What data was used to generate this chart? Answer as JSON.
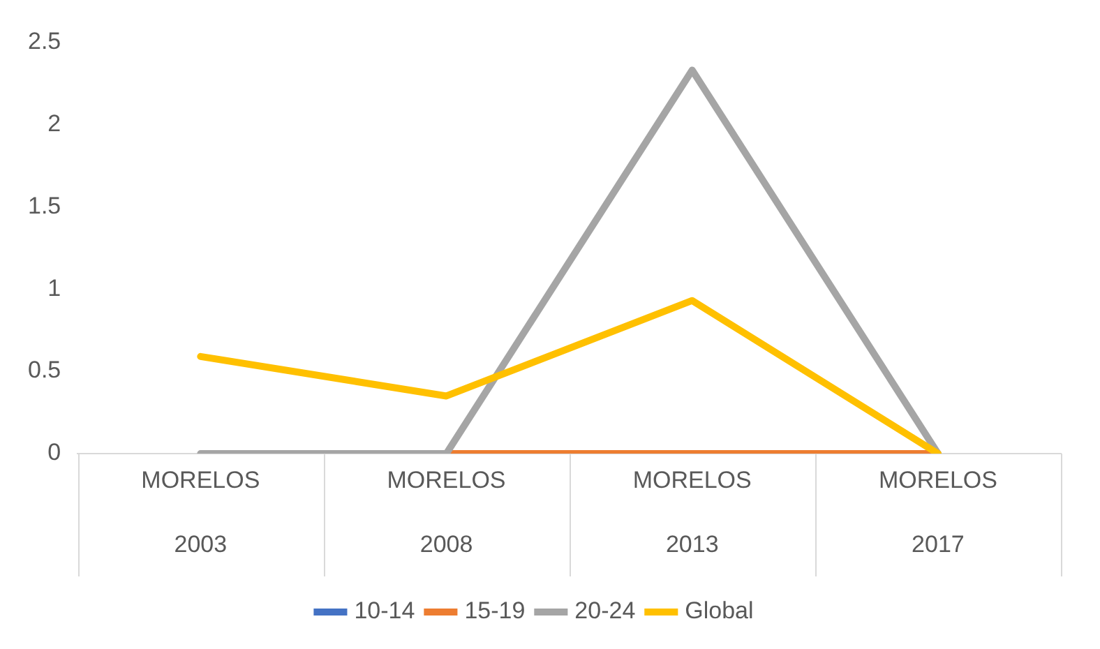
{
  "chart_data": {
    "type": "line",
    "categories": [
      "MORELOS\n2003",
      "MORELOS\n2008",
      "MORELOS\n2013",
      "MORELOS\n2017"
    ],
    "series": [
      {
        "name": "10-14",
        "color": "#4472c4",
        "values": [
          null,
          null,
          null,
          null
        ]
      },
      {
        "name": "15-19",
        "color": "#ed7d31",
        "values": [
          null,
          0,
          0,
          0
        ]
      },
      {
        "name": "20-24",
        "color": "#a5a5a5",
        "values": [
          0,
          0,
          2.33,
          0
        ]
      },
      {
        "name": "Global",
        "color": "#ffc000",
        "values": [
          0.59,
          0.35,
          0.93,
          0
        ]
      }
    ],
    "ylim": [
      0,
      2.5
    ],
    "yticks": [
      0,
      0.5,
      1,
      1.5,
      2,
      2.5
    ],
    "grid": false,
    "legend": "bottom",
    "marker": "none",
    "line_style": "solid"
  }
}
